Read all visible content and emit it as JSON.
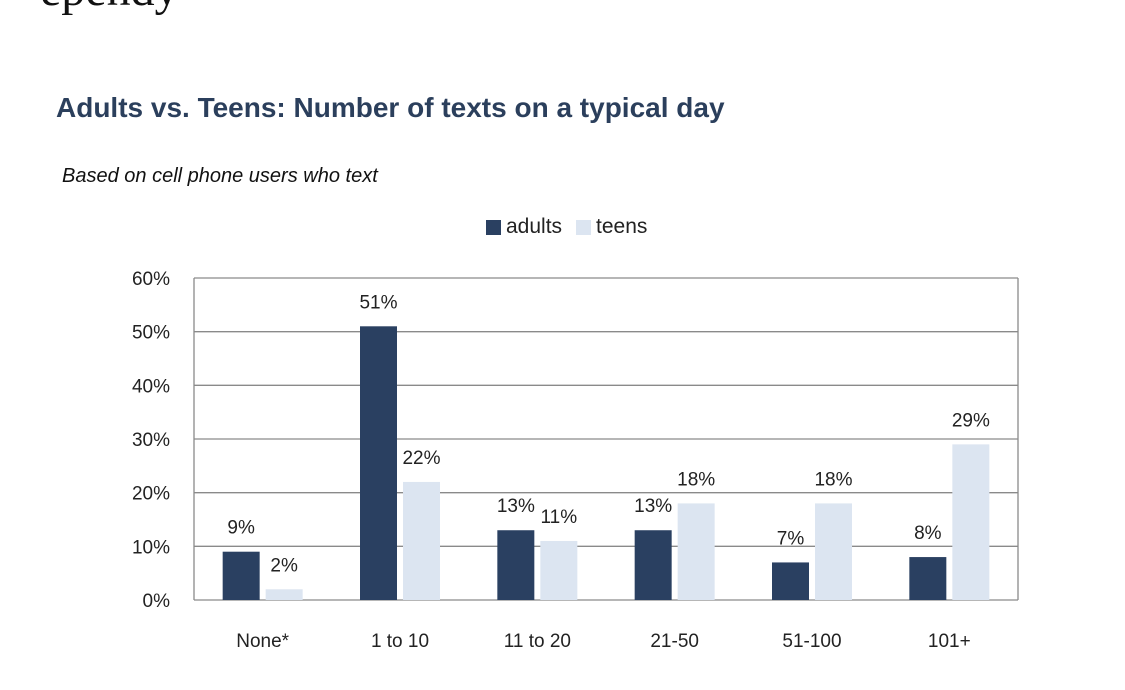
{
  "top_text": "ependy",
  "chart_data": {
    "type": "bar",
    "title": "Adults vs. Teens: Number of texts on a typical day",
    "subtitle": "Based on cell phone users who text",
    "categories": [
      "None*",
      "1 to 10",
      "11 to 20",
      "21-50",
      "51-100",
      "101+"
    ],
    "series": [
      {
        "name": "adults",
        "values": [
          9,
          51,
          13,
          13,
          7,
          8
        ],
        "labels": [
          "9%",
          "51%",
          "13%",
          "13%",
          "7%",
          "8%"
        ],
        "color": "#2a4061"
      },
      {
        "name": "teens",
        "values": [
          2,
          22,
          11,
          18,
          18,
          29
        ],
        "labels": [
          "2%",
          "22%",
          "11%",
          "18%",
          "18%",
          "29%"
        ],
        "color": "#dce5f1"
      }
    ],
    "ylim": [
      0,
      60
    ],
    "yticks": [
      0,
      10,
      20,
      30,
      40,
      50,
      60
    ],
    "ytick_labels": [
      "0%",
      "10%",
      "20%",
      "30%",
      "40%",
      "50%",
      "60%"
    ],
    "xlabel": "",
    "ylabel": "",
    "grid": true,
    "legend_position": "top-center"
  }
}
